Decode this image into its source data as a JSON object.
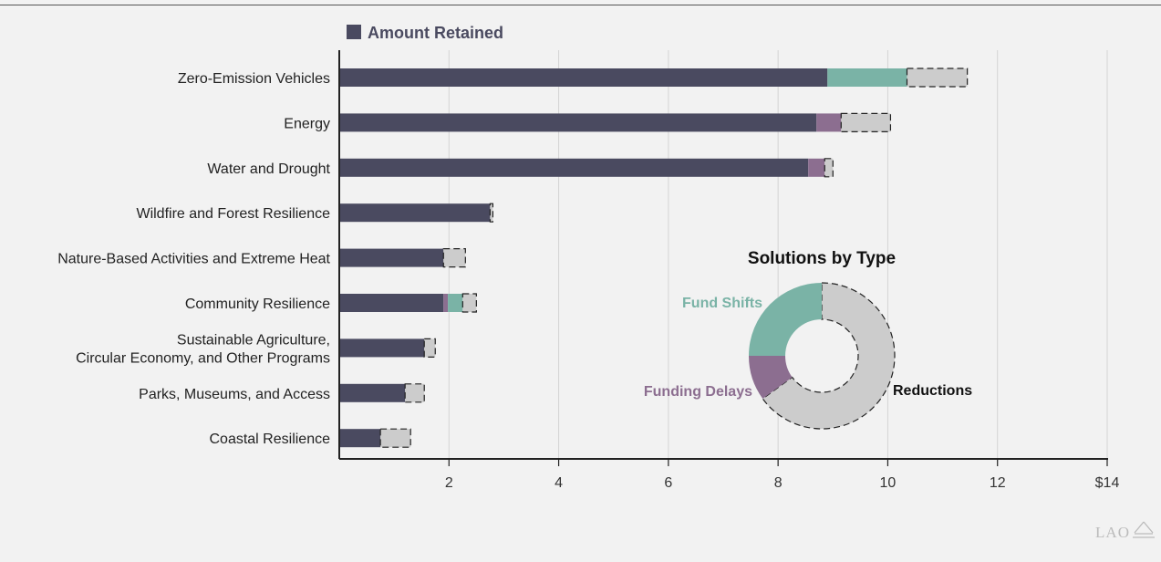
{
  "logo_text": "LAO",
  "chart_data": [
    {
      "type": "bar",
      "orientation": "horizontal",
      "stacked": true,
      "categories": [
        "Zero-Emission Vehicles",
        "Energy",
        "Water and Drought",
        "Wildfire and Forest Resilience",
        "Nature-Based Activities and Extreme Heat",
        "Community Resilience",
        "Sustainable Agriculture, Circular Economy, and Other Programs",
        "Parks, Museums, and Access",
        "Coastal Resilience"
      ],
      "category_lines": [
        [
          "Zero-Emission Vehicles"
        ],
        [
          "Energy"
        ],
        [
          "Water and Drought"
        ],
        [
          "Wildfire and Forest Resilience"
        ],
        [
          "Nature-Based Activities and Extreme Heat"
        ],
        [
          "Community Resilience"
        ],
        [
          "Sustainable Agriculture,",
          "Circular Economy, and Other Programs"
        ],
        [
          "Parks, Museums, and Access"
        ],
        [
          "Coastal Resilience"
        ]
      ],
      "series": [
        {
          "name": "Amount Retained",
          "color": "#4a4a60",
          "values": [
            8.9,
            8.7,
            8.55,
            2.75,
            1.9,
            1.9,
            1.55,
            1.2,
            0.75
          ]
        },
        {
          "color": "#8c6e90",
          "values": [
            0,
            0.45,
            0.3,
            0,
            0,
            0.08,
            0,
            0,
            0
          ]
        },
        {
          "color": "#7ab3a6",
          "values": [
            1.45,
            0,
            0,
            0,
            0,
            0.27,
            0,
            0,
            0
          ]
        },
        {
          "color": "#cccccc",
          "dashed": true,
          "values": [
            1.1,
            0.9,
            0.15,
            0.05,
            0.4,
            0.25,
            0.2,
            0.35,
            0.55
          ]
        }
      ],
      "legend": [
        "Amount Retained"
      ],
      "xticks": [
        2,
        4,
        6,
        8,
        10,
        12,
        14
      ],
      "xtick_labels": [
        "2",
        "4",
        "6",
        "8",
        "10",
        "12",
        "$14"
      ],
      "xlim": [
        0,
        14
      ],
      "grid": true,
      "legend_position": "top-left"
    },
    {
      "type": "pie",
      "donut": true,
      "title": "Solutions by Type",
      "slices": [
        {
          "label": "Reductions",
          "value": 65,
          "color": "#cccccc",
          "dashed": true,
          "text_color": "#111111"
        },
        {
          "label": "Funding Delays",
          "value": 10,
          "color": "#8c6e90",
          "dashed": false,
          "text_color": "#8c6e90"
        },
        {
          "label": "Fund Shifts",
          "value": 25,
          "color": "#7ab3a6",
          "dashed": false,
          "text_color": "#7ab3a6"
        }
      ]
    }
  ]
}
